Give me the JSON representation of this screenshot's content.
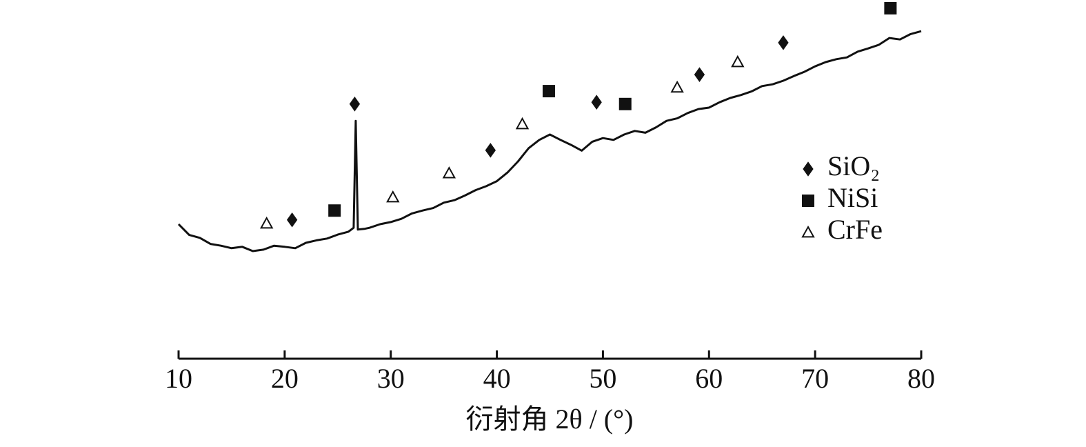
{
  "chart_data": {
    "type": "line",
    "x_label": "衍射角 2θ / (°)",
    "xlim": [
      10,
      80
    ],
    "xticks": [
      10,
      20,
      30,
      40,
      50,
      60,
      70,
      80
    ],
    "ylim": [
      0,
      100
    ],
    "legend": "right",
    "series": [
      {
        "color": "#111111",
        "x": [
          10,
          11,
          12,
          13,
          14,
          15,
          16,
          17,
          18,
          19,
          20,
          21,
          22,
          23,
          24,
          25,
          26,
          26.5,
          26.7,
          26.9,
          27.5,
          28,
          29,
          30,
          31,
          32,
          33,
          34,
          35,
          36,
          37,
          38,
          39,
          40,
          41,
          42,
          43,
          44,
          45,
          46,
          47,
          48,
          49,
          50,
          51,
          52,
          53,
          54,
          55,
          56,
          57,
          58,
          59,
          60,
          61,
          62,
          63,
          64,
          65,
          66,
          67,
          68,
          69,
          70,
          71,
          72,
          73,
          74,
          75,
          76,
          77,
          78,
          79,
          80
        ],
        "values": [
          37.5,
          34.5,
          33.7,
          32.0,
          31.5,
          30.8,
          31.2,
          30.0,
          30.4,
          31.5,
          31.2,
          30.8,
          32.3,
          33.0,
          33.5,
          34.6,
          35.4,
          36.5,
          66.3,
          36.0,
          36.2,
          36.5,
          37.5,
          38.1,
          39.0,
          40.5,
          41.3,
          42.0,
          43.5,
          44.2,
          45.5,
          47.0,
          48.1,
          49.5,
          51.9,
          55.0,
          58.7,
          61.0,
          62.5,
          61.0,
          59.6,
          58.0,
          60.5,
          61.5,
          61.0,
          62.5,
          63.5,
          63.0,
          64.5,
          66.3,
          67.0,
          68.5,
          69.6,
          70.0,
          71.5,
          72.7,
          73.5,
          74.5,
          76.0,
          76.5,
          77.5,
          78.8,
          80.0,
          81.5,
          82.7,
          83.5,
          84.0,
          85.6,
          86.5,
          87.5,
          89.4,
          89.0,
          90.5,
          91.3
        ]
      }
    ],
    "markers": [
      {
        "name": "SiO₂",
        "symbol": "diamond",
        "color": "#111111",
        "x": [
          20.7,
          26.6,
          39.4,
          49.4,
          59.1,
          67.0
        ],
        "values": [
          38.7,
          71.0,
          58.1,
          71.5,
          79.2,
          88.1
        ]
      },
      {
        "name": "NiSi",
        "symbol": "square",
        "color": "#111111",
        "x": [
          24.7,
          44.9,
          52.1,
          77.1
        ],
        "values": [
          41.3,
          74.6,
          71.0,
          97.7
        ]
      },
      {
        "name": "CrFe",
        "symbol": "triangle",
        "color": "#111111",
        "x": [
          18.3,
          30.2,
          35.5,
          42.4,
          57.0,
          62.7
        ],
        "values": [
          37.7,
          45.0,
          51.7,
          65.4,
          75.6,
          82.7
        ]
      }
    ]
  }
}
